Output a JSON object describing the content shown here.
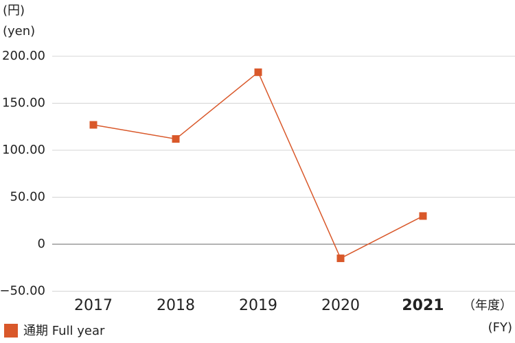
{
  "chart_data": {
    "type": "line",
    "y_unit_labels": [
      "(円)",
      "(yen)"
    ],
    "x_unit_labels": [
      "（年度）",
      "(FY)"
    ],
    "categories": [
      "2017",
      "2018",
      "2019",
      "2020",
      "2021"
    ],
    "series": [
      {
        "name": "通期 Full year",
        "color": "#d9582a",
        "values": [
          127,
          112,
          183,
          -15,
          30
        ]
      }
    ],
    "ylim": [
      -50,
      200
    ],
    "yticks": [
      {
        "value": -50,
        "label": "−50.00"
      },
      0,
      {
        "value": 50,
        "label": "50.00"
      },
      {
        "value": 100,
        "label": "100.00"
      },
      {
        "value": 150,
        "label": "150.00"
      },
      {
        "value": 200,
        "label": "200.00"
      }
    ],
    "grid": true
  }
}
